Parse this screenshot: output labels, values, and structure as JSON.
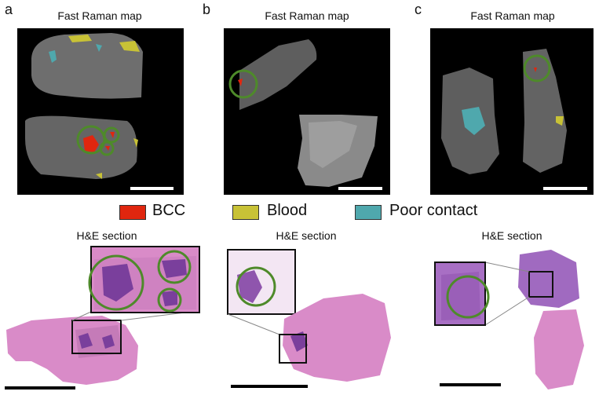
{
  "panels": [
    {
      "letter": "a",
      "raman_title": "Fast Raman map",
      "he_title": "H&E section"
    },
    {
      "letter": "b",
      "raman_title": "Fast Raman map",
      "he_title": "H&E section"
    },
    {
      "letter": "c",
      "raman_title": "Fast Raman map",
      "he_title": "H&E section"
    }
  ],
  "legend": [
    {
      "label": "BCC",
      "color": "#e0260f"
    },
    {
      "label": "Blood",
      "color": "#c8c236"
    },
    {
      "label": "Poor contact",
      "color": "#4fa8ad"
    }
  ],
  "colors": {
    "map_background": "#000000",
    "tissue_gray": "#6a6a6a",
    "circle_green": "#4e8a2a",
    "he_pink": "#d98bc8",
    "he_purple": "#7a3f9c",
    "scale_bar_map": "#ffffff",
    "scale_bar_he": "#000000"
  }
}
